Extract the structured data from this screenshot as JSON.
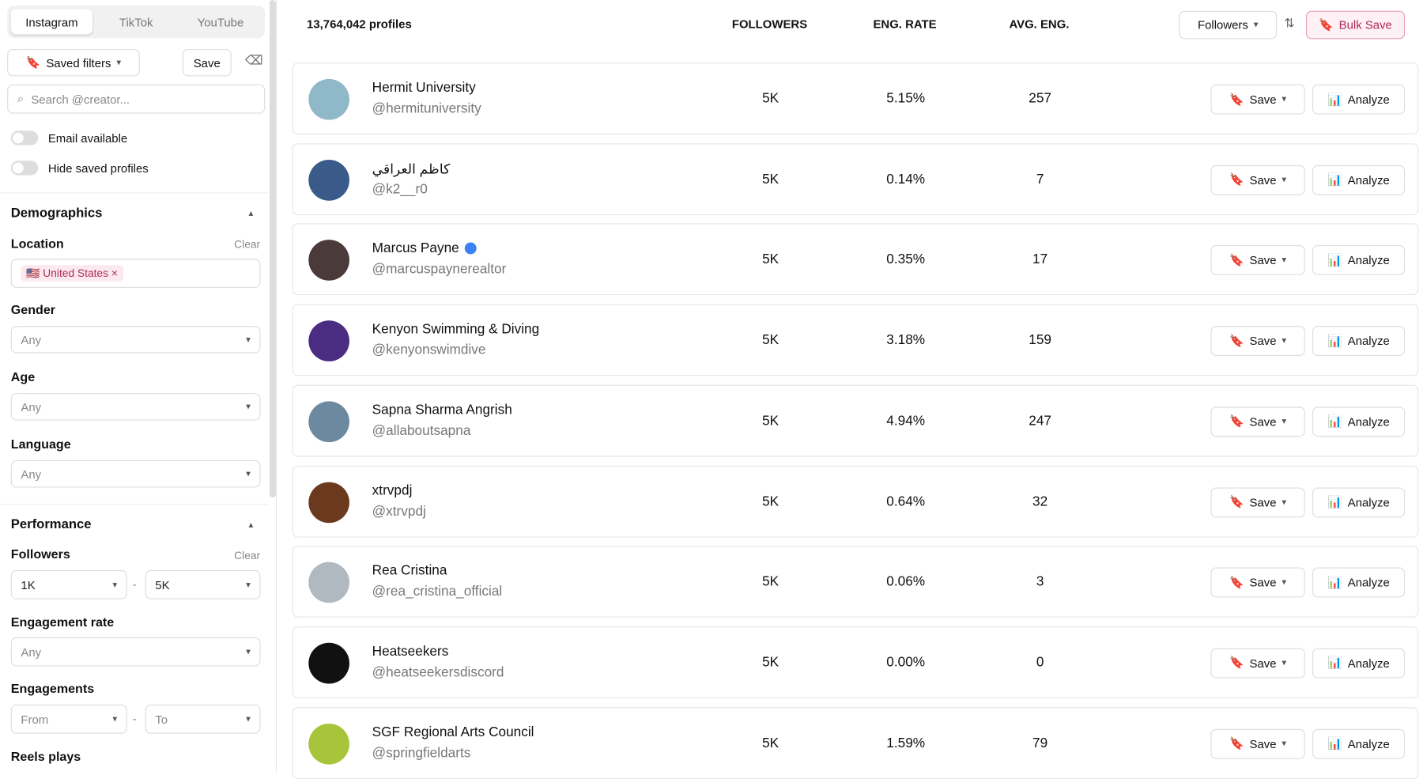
{
  "tabs": [
    "Instagram",
    "TikTok",
    "YouTube"
  ],
  "sidebar": {
    "saved_filters": "Saved filters",
    "save": "Save",
    "search_placeholder": "Search @creator...",
    "toggles": [
      "Email available",
      "Hide saved profiles"
    ],
    "demographics": {
      "title": "Demographics",
      "location": {
        "label": "Location",
        "clear": "Clear",
        "tag": "United States"
      },
      "gender": {
        "label": "Gender",
        "value": "Any"
      },
      "age": {
        "label": "Age",
        "value": "Any"
      },
      "language": {
        "label": "Language",
        "value": "Any"
      }
    },
    "performance": {
      "title": "Performance",
      "followers": {
        "label": "Followers",
        "clear": "Clear",
        "from": "1K",
        "sep": "-",
        "to": "5K"
      },
      "engagement_rate": {
        "label": "Engagement rate",
        "value": "Any"
      },
      "engagements": {
        "label": "Engagements",
        "from": "From",
        "sep": "-",
        "to": "To"
      },
      "reels_plays": {
        "label": "Reels plays"
      }
    }
  },
  "header": {
    "count": "13,764,042 profiles",
    "columns": [
      "FOLLOWERS",
      "ENG. RATE",
      "AVG. ENG."
    ],
    "sort": "Followers",
    "bulk_save": "Bulk Save"
  },
  "actions": {
    "save": "Save",
    "analyze": "Analyze"
  },
  "rows": [
    {
      "name": "Hermit University",
      "handle": "@hermituniversity",
      "followers": "5K",
      "eng_rate": "5.15%",
      "avg_eng": "257"
    },
    {
      "name": "كاظم العراقي",
      "handle": "@k2__r0",
      "followers": "5K",
      "eng_rate": "0.14%",
      "avg_eng": "7"
    },
    {
      "name": "Marcus Payne",
      "handle": "@marcuspaynerealtor",
      "followers": "5K",
      "eng_rate": "0.35%",
      "avg_eng": "17",
      "verified": true
    },
    {
      "name": "Kenyon Swimming & Diving",
      "handle": "@kenyonswimdive",
      "followers": "5K",
      "eng_rate": "3.18%",
      "avg_eng": "159"
    },
    {
      "name": "Sapna Sharma Angrish",
      "handle": "@allaboutsapna",
      "followers": "5K",
      "eng_rate": "4.94%",
      "avg_eng": "247"
    },
    {
      "name": "xtrvpdj",
      "handle": "@xtrvpdj",
      "followers": "5K",
      "eng_rate": "0.64%",
      "avg_eng": "32"
    },
    {
      "name": "Rea Cristina",
      "handle": "@rea_cristina_official",
      "followers": "5K",
      "eng_rate": "0.06%",
      "avg_eng": "3"
    },
    {
      "name": "Heatseekers",
      "handle": "@heatseekersdiscord",
      "followers": "5K",
      "eng_rate": "0.00%",
      "avg_eng": "0"
    },
    {
      "name": "SGF Regional Arts Council",
      "handle": "@springfieldarts",
      "followers": "5K",
      "eng_rate": "1.59%",
      "avg_eng": "79"
    }
  ]
}
